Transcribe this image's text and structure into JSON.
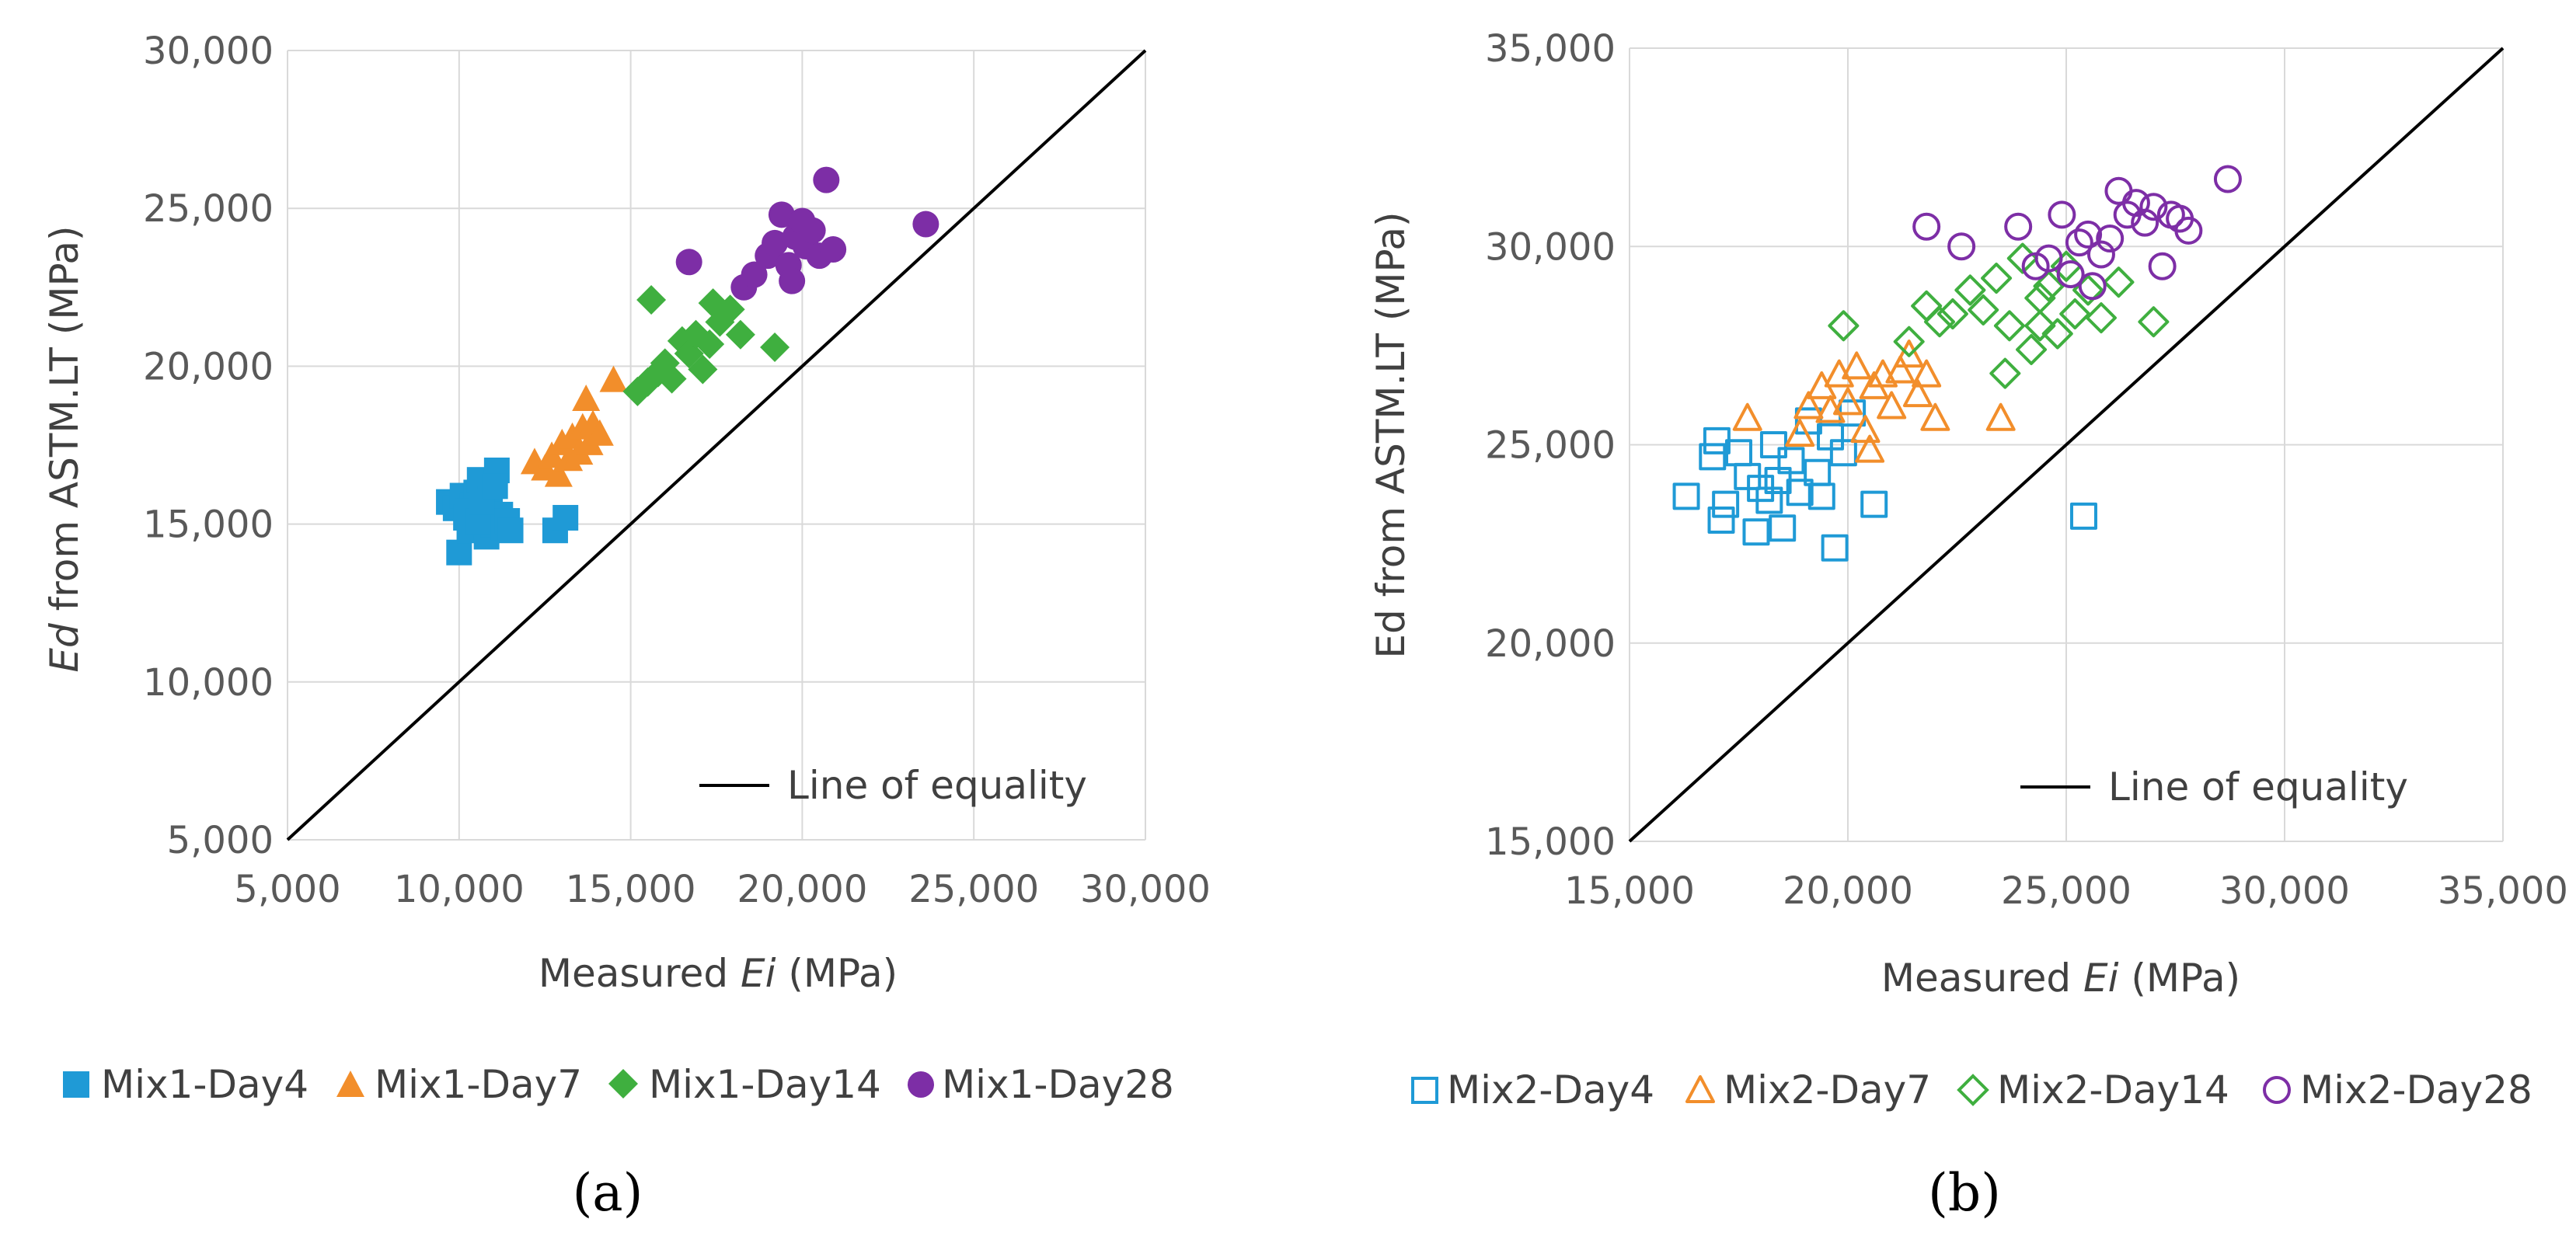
{
  "chart_data": [
    {
      "panel": "(a)",
      "type": "scatter",
      "xlabel": "Measured Ei (MPa)",
      "ylabel": "Ed from ASTM.LT (MPa)",
      "xlabel_parts": [
        "Measured ",
        "Ei",
        " (MPa)"
      ],
      "ylabel_parts": [
        "Ed",
        " from ASTM.LT (MPa)"
      ],
      "xlim": [
        5000,
        30000
      ],
      "ylim": [
        5000,
        30000
      ],
      "xticks": [
        "5,000",
        "10,000",
        "15,000",
        "20,000",
        "25,000",
        "30,000"
      ],
      "yticks": [
        "5,000",
        "10,000",
        "15,000",
        "20,000",
        "25,000",
        "30,000"
      ],
      "grid": true,
      "annotation_line": "Line of equality",
      "legend_position": "bottom",
      "series": [
        {
          "name": "Mix1-Day4",
          "marker": "square-filled",
          "color": "#1f9ad6",
          "points": [
            [
              9700,
              15700
            ],
            [
              9900,
              15500
            ],
            [
              10000,
              14100
            ],
            [
              10100,
              15900
            ],
            [
              10200,
              15200
            ],
            [
              10300,
              14800
            ],
            [
              10400,
              15600
            ],
            [
              10500,
              16000
            ],
            [
              10600,
              16400
            ],
            [
              10700,
              15200
            ],
            [
              10800,
              14600
            ],
            [
              10900,
              15800
            ],
            [
              11000,
              15000
            ],
            [
              11100,
              16700
            ],
            [
              11200,
              15300
            ],
            [
              11300,
              14900
            ],
            [
              11400,
              15100
            ],
            [
              11500,
              14800
            ],
            [
              10250,
              15400
            ],
            [
              10550,
              15100
            ],
            [
              10650,
              15700
            ],
            [
              11050,
              16200
            ],
            [
              12800,
              14800
            ],
            [
              13100,
              15200
            ]
          ]
        },
        {
          "name": "Mix1-Day7",
          "marker": "triangle-filled",
          "color": "#f28e2b",
          "points": [
            [
              12200,
              17000
            ],
            [
              12500,
              16800
            ],
            [
              12700,
              17200
            ],
            [
              12900,
              16600
            ],
            [
              13000,
              17600
            ],
            [
              13200,
              17100
            ],
            [
              13300,
              17800
            ],
            [
              13500,
              17300
            ],
            [
              13600,
              18100
            ],
            [
              13700,
              19000
            ],
            [
              13800,
              17600
            ],
            [
              13900,
              18200
            ],
            [
              14100,
              17900
            ],
            [
              14500,
              19600
            ]
          ]
        },
        {
          "name": "Mix1-Day14",
          "marker": "diamond-filled",
          "color": "#3faf3f",
          "points": [
            [
              15200,
              19200
            ],
            [
              15500,
              19500
            ],
            [
              15600,
              22100
            ],
            [
              15800,
              19800
            ],
            [
              16000,
              20100
            ],
            [
              16200,
              19600
            ],
            [
              16500,
              20800
            ],
            [
              16700,
              20400
            ],
            [
              16900,
              21000
            ],
            [
              17100,
              19900
            ],
            [
              17300,
              20700
            ],
            [
              17400,
              22000
            ],
            [
              17600,
              21400
            ],
            [
              17900,
              21800
            ],
            [
              18200,
              21000
            ],
            [
              19200,
              20600
            ]
          ]
        },
        {
          "name": "Mix1-Day28",
          "marker": "circle-filled",
          "color": "#7d2ea6",
          "points": [
            [
              16700,
              23300
            ],
            [
              18300,
              22500
            ],
            [
              18600,
              22900
            ],
            [
              19000,
              23500
            ],
            [
              19200,
              23900
            ],
            [
              19400,
              24800
            ],
            [
              19600,
              23200
            ],
            [
              19700,
              22700
            ],
            [
              19800,
              24100
            ],
            [
              20000,
              24600
            ],
            [
              20100,
              23800
            ],
            [
              20300,
              24300
            ],
            [
              20500,
              23500
            ],
            [
              20700,
              25900
            ],
            [
              20900,
              23700
            ],
            [
              23600,
              24500
            ]
          ]
        }
      ]
    },
    {
      "panel": "(b)",
      "type": "scatter",
      "xlabel": "Measured Ei (MPa)",
      "ylabel": "Ed from ASTM.LT (MPa)",
      "xlabel_parts": [
        "Measured ",
        "Ei",
        " (MPa)"
      ],
      "ylabel_parts": [
        "Ed",
        " from ASTM.LT (MPa)"
      ],
      "xlim": [
        15000,
        35000
      ],
      "ylim": [
        15000,
        35000
      ],
      "xticks": [
        "15,000",
        "20,000",
        "25,000",
        "30,000",
        "35,000"
      ],
      "yticks": [
        "15,000",
        "20,000",
        "25,000",
        "30,000",
        "35,000"
      ],
      "grid": true,
      "annotation_line": "Line of equality",
      "legend_position": "bottom",
      "series": [
        {
          "name": "Mix2-Day4",
          "marker": "square-open",
          "color": "#1f9ad6",
          "points": [
            [
              16300,
              23700
            ],
            [
              16900,
              24700
            ],
            [
              17000,
              25100
            ],
            [
              17100,
              23100
            ],
            [
              17200,
              23500
            ],
            [
              17500,
              24800
            ],
            [
              17700,
              24200
            ],
            [
              17900,
              22800
            ],
            [
              18000,
              23900
            ],
            [
              18200,
              23600
            ],
            [
              18300,
              25000
            ],
            [
              18400,
              24100
            ],
            [
              18500,
              22900
            ],
            [
              18700,
              24600
            ],
            [
              18900,
              23800
            ],
            [
              19100,
              25600
            ],
            [
              19300,
              24300
            ],
            [
              19400,
              23700
            ],
            [
              19600,
              25200
            ],
            [
              19700,
              22400
            ],
            [
              19900,
              24800
            ],
            [
              20100,
              25800
            ],
            [
              20600,
              23500
            ],
            [
              25400,
              23200
            ]
          ]
        },
        {
          "name": "Mix2-Day7",
          "marker": "triangle-open",
          "color": "#f28e2b",
          "points": [
            [
              17700,
              25700
            ],
            [
              18900,
              25300
            ],
            [
              19100,
              26000
            ],
            [
              19400,
              26500
            ],
            [
              19600,
              25900
            ],
            [
              19800,
              26800
            ],
            [
              20000,
              26100
            ],
            [
              20200,
              27000
            ],
            [
              20400,
              25400
            ],
            [
              20500,
              24900
            ],
            [
              20600,
              26500
            ],
            [
              20800,
              26800
            ],
            [
              21000,
              26000
            ],
            [
              21200,
              26900
            ],
            [
              21400,
              27300
            ],
            [
              21600,
              26300
            ],
            [
              21800,
              26800
            ],
            [
              22000,
              25700
            ],
            [
              23500,
              25700
            ]
          ]
        },
        {
          "name": "Mix2-Day14",
          "marker": "diamond-open",
          "color": "#3faf3f",
          "points": [
            [
              19900,
              28000
            ],
            [
              21400,
              27600
            ],
            [
              21800,
              28500
            ],
            [
              22100,
              28100
            ],
            [
              22400,
              28300
            ],
            [
              22800,
              28900
            ],
            [
              23100,
              28400
            ],
            [
              23400,
              29200
            ],
            [
              23700,
              28000
            ],
            [
              24000,
              29700
            ],
            [
              24200,
              27400
            ],
            [
              24400,
              28700
            ],
            [
              24600,
              29000
            ],
            [
              24800,
              27800
            ],
            [
              25000,
              29500
            ],
            [
              25200,
              28300
            ],
            [
              25500,
              28900
            ],
            [
              25800,
              28200
            ],
            [
              26200,
              29100
            ],
            [
              27000,
              28100
            ],
            [
              23600,
              26800
            ],
            [
              24400,
              28000
            ]
          ]
        },
        {
          "name": "Mix2-Day28",
          "marker": "circle-open",
          "color": "#7d2ea6",
          "points": [
            [
              21800,
              30500
            ],
            [
              22600,
              30000
            ],
            [
              23900,
              30500
            ],
            [
              24300,
              29500
            ],
            [
              24600,
              29700
            ],
            [
              24900,
              30800
            ],
            [
              25100,
              29300
            ],
            [
              25300,
              30100
            ],
            [
              25500,
              30300
            ],
            [
              25600,
              29000
            ],
            [
              25800,
              29800
            ],
            [
              26000,
              30200
            ],
            [
              26200,
              31400
            ],
            [
              26400,
              30800
            ],
            [
              26600,
              31100
            ],
            [
              26800,
              30600
            ],
            [
              27000,
              31000
            ],
            [
              27200,
              29500
            ],
            [
              27400,
              30800
            ],
            [
              27600,
              30700
            ],
            [
              27800,
              30400
            ],
            [
              28700,
              31700
            ]
          ]
        }
      ]
    }
  ],
  "legend_a": [
    "Mix1-Day4",
    "Mix1-Day7",
    "Mix1-Day14",
    "Mix1-Day28"
  ],
  "legend_b": [
    "Mix2-Day4",
    "Mix2-Day7",
    "Mix2-Day14",
    "Mix2-Day28"
  ]
}
